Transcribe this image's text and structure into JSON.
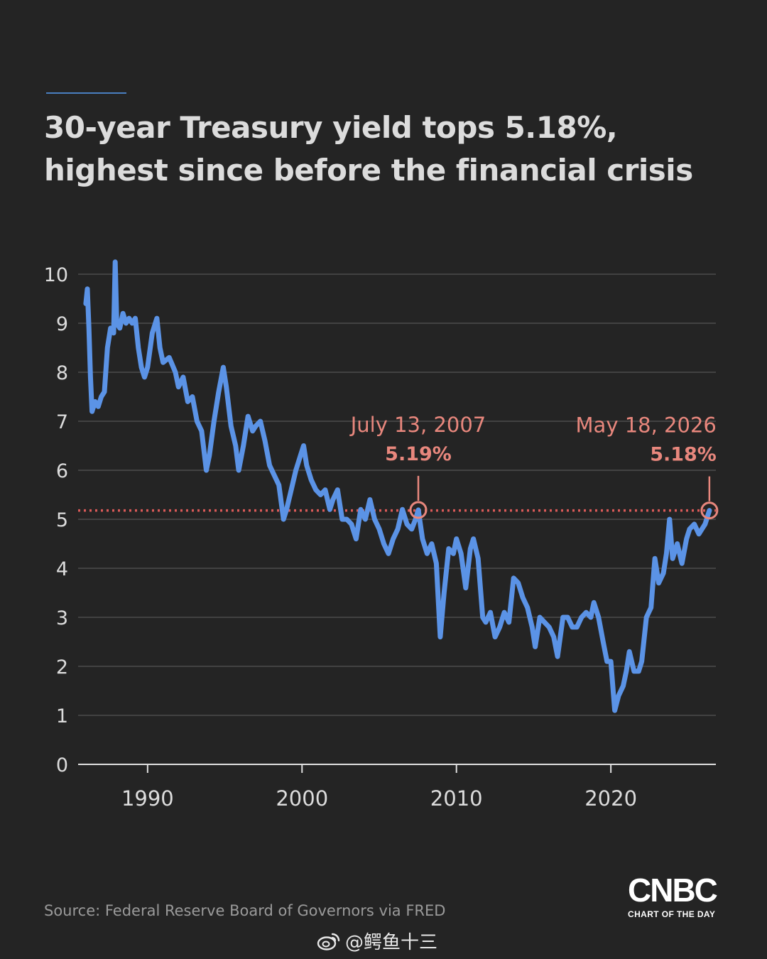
{
  "kicker": "",
  "title_line1": "30-year Treasury yield tops 5.18%,",
  "title_line2": "highest since before the financial crisis",
  "source": "Source: Federal Reserve Board of Governors via FRED",
  "logo": {
    "word": "CNBC",
    "sub": "CHART OF THE DAY"
  },
  "watermark": {
    "icon": "weibo-icon",
    "text": "@鳄鱼十三"
  },
  "colors": {
    "background": "#242424",
    "line": "#5b93e6",
    "annotation": "#e8877d",
    "reference": "#d95a58",
    "grid": "#555555",
    "text": "#dcdcdc"
  },
  "chart_data": {
    "type": "line",
    "x_unit": "year",
    "xlim": [
      1985.5,
      2026.8
    ],
    "ylim": [
      0,
      10
    ],
    "y_ticks": [
      0,
      1,
      2,
      3,
      4,
      5,
      6,
      7,
      8,
      9,
      10
    ],
    "x_ticks": [
      1990,
      2000,
      2010,
      2020
    ],
    "x_tick_labels": [
      "1990",
      "2000",
      "2010",
      "2020"
    ],
    "grid": "horizontal",
    "reference_line": {
      "y": 5.18,
      "style": "dotted"
    },
    "series": [
      {
        "name": "",
        "points": [
          [
            1986.0,
            9.4
          ],
          [
            1986.1,
            9.7
          ],
          [
            1986.2,
            8.9
          ],
          [
            1986.3,
            7.9
          ],
          [
            1986.4,
            7.2
          ],
          [
            1986.6,
            7.4
          ],
          [
            1986.8,
            7.3
          ],
          [
            1987.0,
            7.5
          ],
          [
            1987.2,
            7.6
          ],
          [
            1987.4,
            8.5
          ],
          [
            1987.6,
            8.9
          ],
          [
            1987.8,
            8.8
          ],
          [
            1987.9,
            10.25
          ],
          [
            1988.0,
            9.0
          ],
          [
            1988.2,
            8.9
          ],
          [
            1988.4,
            9.2
          ],
          [
            1988.6,
            9.0
          ],
          [
            1988.8,
            9.1
          ],
          [
            1989.0,
            9.0
          ],
          [
            1989.2,
            9.1
          ],
          [
            1989.4,
            8.5
          ],
          [
            1989.6,
            8.1
          ],
          [
            1989.8,
            7.9
          ],
          [
            1990.0,
            8.1
          ],
          [
            1990.3,
            8.8
          ],
          [
            1990.6,
            9.1
          ],
          [
            1990.8,
            8.5
          ],
          [
            1991.0,
            8.2
          ],
          [
            1991.4,
            8.3
          ],
          [
            1991.8,
            8.0
          ],
          [
            1992.0,
            7.7
          ],
          [
            1992.3,
            7.9
          ],
          [
            1992.6,
            7.4
          ],
          [
            1992.9,
            7.5
          ],
          [
            1993.2,
            7.0
          ],
          [
            1993.5,
            6.8
          ],
          [
            1993.8,
            6.0
          ],
          [
            1994.0,
            6.3
          ],
          [
            1994.3,
            7.0
          ],
          [
            1994.6,
            7.6
          ],
          [
            1994.9,
            8.1
          ],
          [
            1995.1,
            7.7
          ],
          [
            1995.4,
            6.9
          ],
          [
            1995.7,
            6.5
          ],
          [
            1995.9,
            6.0
          ],
          [
            1996.2,
            6.5
          ],
          [
            1996.5,
            7.1
          ],
          [
            1996.8,
            6.8
          ],
          [
            1997.0,
            6.9
          ],
          [
            1997.3,
            7.0
          ],
          [
            1997.6,
            6.6
          ],
          [
            1997.9,
            6.1
          ],
          [
            1998.2,
            5.9
          ],
          [
            1998.5,
            5.7
          ],
          [
            1998.8,
            5.0
          ],
          [
            1999.0,
            5.2
          ],
          [
            1999.3,
            5.6
          ],
          [
            1999.6,
            6.0
          ],
          [
            1999.9,
            6.3
          ],
          [
            2000.1,
            6.5
          ],
          [
            2000.3,
            6.1
          ],
          [
            2000.6,
            5.8
          ],
          [
            2000.9,
            5.6
          ],
          [
            2001.2,
            5.5
          ],
          [
            2001.5,
            5.6
          ],
          [
            2001.8,
            5.2
          ],
          [
            2002.0,
            5.4
          ],
          [
            2002.3,
            5.6
          ],
          [
            2002.6,
            5.0
          ],
          [
            2002.9,
            5.0
          ],
          [
            2003.2,
            4.9
          ],
          [
            2003.5,
            4.6
          ],
          [
            2003.8,
            5.2
          ],
          [
            2004.1,
            5.0
          ],
          [
            2004.4,
            5.4
          ],
          [
            2004.7,
            5.0
          ],
          [
            2005.0,
            4.8
          ],
          [
            2005.3,
            4.5
          ],
          [
            2005.6,
            4.3
          ],
          [
            2005.9,
            4.6
          ],
          [
            2006.2,
            4.8
          ],
          [
            2006.5,
            5.2
          ],
          [
            2006.8,
            4.9
          ],
          [
            2007.1,
            4.8
          ],
          [
            2007.35,
            5.0
          ],
          [
            2007.53,
            5.19
          ],
          [
            2007.8,
            4.6
          ],
          [
            2008.1,
            4.3
          ],
          [
            2008.4,
            4.5
          ],
          [
            2008.7,
            4.1
          ],
          [
            2008.95,
            2.6
          ],
          [
            2009.2,
            3.5
          ],
          [
            2009.5,
            4.4
          ],
          [
            2009.8,
            4.3
          ],
          [
            2010.0,
            4.6
          ],
          [
            2010.3,
            4.3
          ],
          [
            2010.6,
            3.6
          ],
          [
            2010.9,
            4.4
          ],
          [
            2011.1,
            4.6
          ],
          [
            2011.4,
            4.2
          ],
          [
            2011.7,
            3.0
          ],
          [
            2011.9,
            2.9
          ],
          [
            2012.2,
            3.1
          ],
          [
            2012.5,
            2.6
          ],
          [
            2012.8,
            2.8
          ],
          [
            2013.1,
            3.1
          ],
          [
            2013.4,
            2.9
          ],
          [
            2013.7,
            3.8
          ],
          [
            2014.0,
            3.7
          ],
          [
            2014.3,
            3.4
          ],
          [
            2014.6,
            3.2
          ],
          [
            2014.9,
            2.8
          ],
          [
            2015.1,
            2.4
          ],
          [
            2015.4,
            3.0
          ],
          [
            2015.7,
            2.9
          ],
          [
            2016.0,
            2.8
          ],
          [
            2016.3,
            2.6
          ],
          [
            2016.55,
            2.2
          ],
          [
            2016.9,
            3.0
          ],
          [
            2017.2,
            3.0
          ],
          [
            2017.5,
            2.8
          ],
          [
            2017.8,
            2.8
          ],
          [
            2018.1,
            3.0
          ],
          [
            2018.4,
            3.1
          ],
          [
            2018.7,
            3.0
          ],
          [
            2018.9,
            3.3
          ],
          [
            2019.2,
            3.0
          ],
          [
            2019.5,
            2.5
          ],
          [
            2019.75,
            2.1
          ],
          [
            2020.0,
            2.1
          ],
          [
            2020.25,
            1.1
          ],
          [
            2020.5,
            1.4
          ],
          [
            2020.8,
            1.6
          ],
          [
            2021.0,
            1.9
          ],
          [
            2021.2,
            2.3
          ],
          [
            2021.5,
            1.9
          ],
          [
            2021.8,
            1.9
          ],
          [
            2022.0,
            2.1
          ],
          [
            2022.3,
            3.0
          ],
          [
            2022.6,
            3.2
          ],
          [
            2022.85,
            4.2
          ],
          [
            2023.1,
            3.7
          ],
          [
            2023.4,
            3.9
          ],
          [
            2023.6,
            4.3
          ],
          [
            2023.8,
            5.0
          ],
          [
            2024.0,
            4.2
          ],
          [
            2024.3,
            4.5
          ],
          [
            2024.6,
            4.1
          ],
          [
            2024.9,
            4.6
          ],
          [
            2025.1,
            4.8
          ],
          [
            2025.4,
            4.9
          ],
          [
            2025.7,
            4.7
          ],
          [
            2025.9,
            4.8
          ],
          [
            2026.1,
            4.9
          ],
          [
            2026.38,
            5.18
          ]
        ]
      }
    ],
    "annotations": [
      {
        "date": "July 13, 2007",
        "value_label": "5.19%",
        "x": 2007.53,
        "y": 5.19
      },
      {
        "date": "May 18, 2026",
        "value_label": "5.18%",
        "x": 2026.38,
        "y": 5.18
      }
    ]
  }
}
